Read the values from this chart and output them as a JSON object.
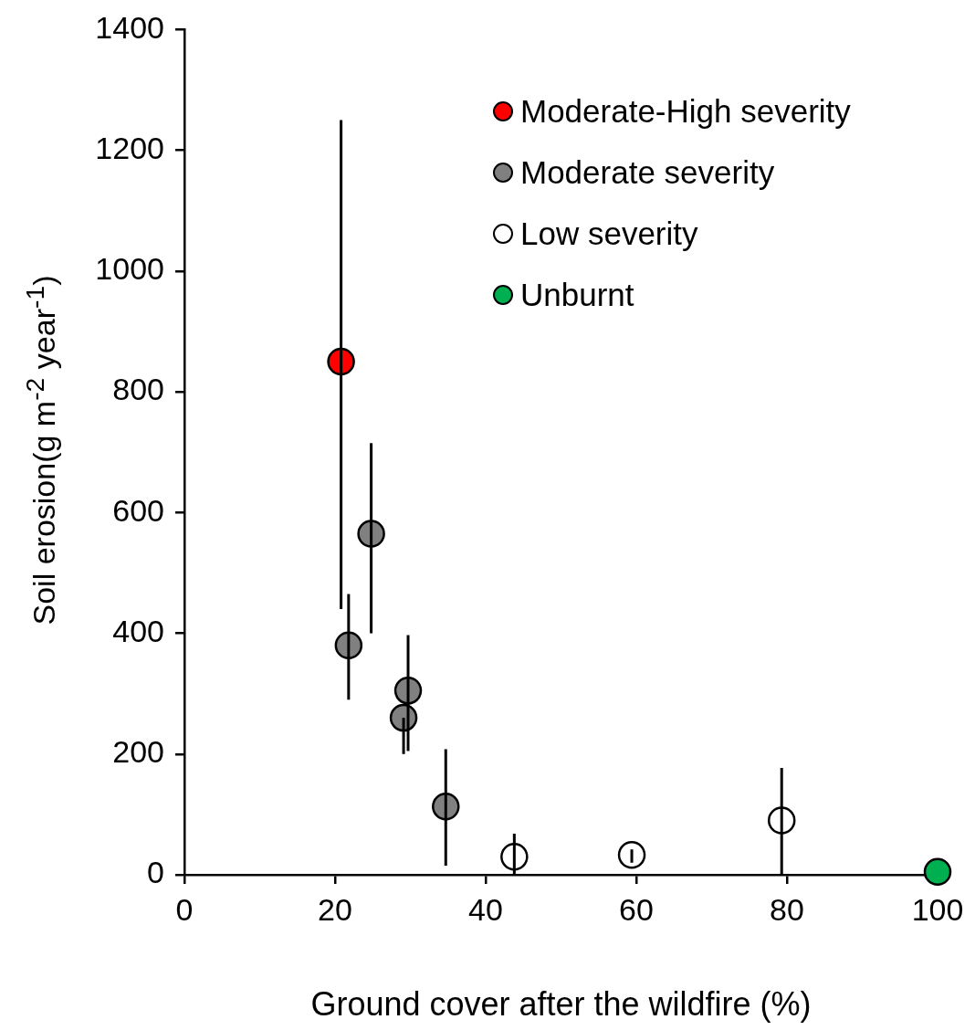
{
  "chart_data": {
    "type": "scatter",
    "xlabel": "Ground cover after the wildfire (%)",
    "ylabel": "Soil erosion(g m$^{-2}$ year$^{-1}$)",
    "xlim": [
      0,
      100
    ],
    "xticks": [
      0,
      20,
      40,
      60,
      80,
      100
    ],
    "ylim": [
      0,
      1400
    ],
    "yticks": [
      0,
      200,
      400,
      600,
      800,
      1000,
      1200,
      1400
    ],
    "grid": false,
    "legend": "top right",
    "marker": "circle",
    "series": [
      {
        "name": "Moderate-High severity",
        "color": "#ff0000",
        "x": [
          20.8
        ],
        "values": [
          850
        ],
        "errors": [
          [
            440,
            1250
          ]
        ]
      },
      {
        "name": "Moderate severity",
        "color": "#808080",
        "x": [
          21.8,
          24.8,
          29.7,
          29.1,
          34.7
        ],
        "values": [
          380,
          565,
          305,
          260,
          113
        ],
        "errors": [
          [
            290,
            465
          ],
          [
            400,
            715
          ],
          [
            205,
            397
          ],
          [
            200,
            260
          ],
          [
            15,
            208
          ]
        ]
      },
      {
        "name": "Low severity",
        "color": "#ffffff",
        "x": [
          43.8,
          59.4,
          79.3
        ],
        "values": [
          30,
          33,
          90
        ],
        "errors": [
          [
            0,
            68
          ],
          [
            20,
            42
          ],
          [
            0,
            177
          ]
        ]
      },
      {
        "name": "Unburnt",
        "color": "#00b050",
        "x": [
          100
        ],
        "values": [
          5
        ],
        "errors": [
          null
        ]
      }
    ]
  }
}
